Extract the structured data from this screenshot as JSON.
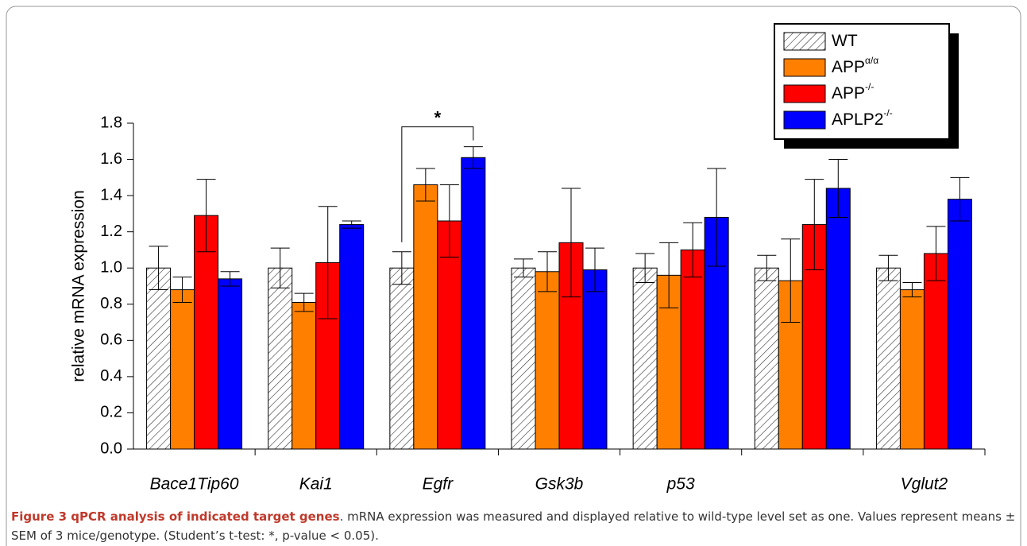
{
  "chart_data": {
    "type": "bar",
    "y_label": "relative mRNA expression",
    "categories": [
      "Bace1Tip60",
      "Kai1",
      "Egfr",
      "Gsk3b",
      "p53",
      null,
      "Vglut2"
    ],
    "series": [
      {
        "name": "WT",
        "color": "#ffffff",
        "pattern": "hatch",
        "values": [
          1.0,
          1.0,
          1.0,
          1.0,
          1.0,
          1.0,
          1.0
        ],
        "errors": [
          0.12,
          0.11,
          0.09,
          0.05,
          0.08,
          0.07,
          0.07
        ]
      },
      {
        "name": "APP",
        "name_sup": "α/α",
        "color": "#ff8000",
        "values": [
          0.88,
          0.81,
          1.46,
          0.98,
          0.96,
          0.93,
          0.88
        ],
        "errors": [
          0.07,
          0.05,
          0.09,
          0.11,
          0.18,
          0.23,
          0.04
        ]
      },
      {
        "name": "APP",
        "name_sup": "-/-",
        "color": "#ff0000",
        "values": [
          1.29,
          1.03,
          1.26,
          1.14,
          1.1,
          1.24,
          1.08
        ],
        "errors": [
          0.2,
          0.31,
          0.2,
          0.3,
          0.15,
          0.25,
          0.15
        ]
      },
      {
        "name": "APLP2",
        "name_sup": "-/-",
        "color": "#0000ff",
        "values": [
          0.94,
          1.24,
          1.61,
          0.99,
          1.28,
          1.44,
          1.38
        ],
        "errors": [
          0.04,
          0.02,
          0.06,
          0.12,
          0.27,
          0.16,
          0.12
        ]
      }
    ],
    "ylim": [
      0,
      1.8
    ],
    "yticks": [
      {
        "value": 0,
        "label": "0.0"
      },
      0.2,
      0.4,
      0.6,
      0.8,
      {
        "value": 1,
        "label": "1.0"
      },
      1.2,
      1.4,
      1.6,
      1.8
    ],
    "significance": [
      {
        "label": "*",
        "category": 2,
        "from_series": 0,
        "to_series": 3
      }
    ],
    "legend": "top-right"
  },
  "caption": {
    "title": "Figure 3 qPCR analysis of indicated target genes",
    "text": ". mRNA expression was measured and displayed relative to wild-type level set as one. Values represent means ± SEM of 3 mice/genotype. (Student’s t-test: *, p-value < 0.05)."
  }
}
